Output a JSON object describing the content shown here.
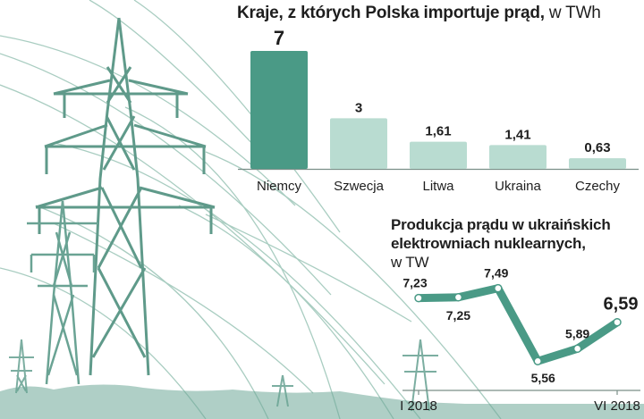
{
  "colors": {
    "highlight_bar": "#4a9a86",
    "bar": "#b9dcd1",
    "line": "#4a9a86",
    "axis": "#7a8f88",
    "towers": "#5f9a8a",
    "cables": "#a9cdc1",
    "text": "#1e1e1e"
  },
  "chart_data": [
    {
      "type": "bar",
      "title": "Kraje, z których Polska importuje prąd,",
      "unit": "w TWh",
      "categories": [
        "Niemcy",
        "Szwecja",
        "Litwa",
        "Ukraina",
        "Czechy"
      ],
      "values": [
        7,
        3,
        1.61,
        1.41,
        0.63
      ],
      "value_labels": [
        "7",
        "3",
        "1,61",
        "1,41",
        "0,63"
      ],
      "highlight_index": 0,
      "ylim": [
        0,
        7
      ]
    },
    {
      "type": "line",
      "title_lines": [
        "Produkcja prądu w ukraińskich",
        "elektrowniach nuklearnych,"
      ],
      "unit": "w TW",
      "x_labels": [
        "I 2018",
        "VI 2018"
      ],
      "values": [
        7.23,
        7.25,
        7.49,
        5.56,
        5.89,
        6.59
      ],
      "value_labels": [
        "7,23",
        "7,25",
        "7,49",
        "5,56",
        "5,89",
        "6,59"
      ],
      "ylim": [
        5.4,
        7.6
      ]
    }
  ]
}
